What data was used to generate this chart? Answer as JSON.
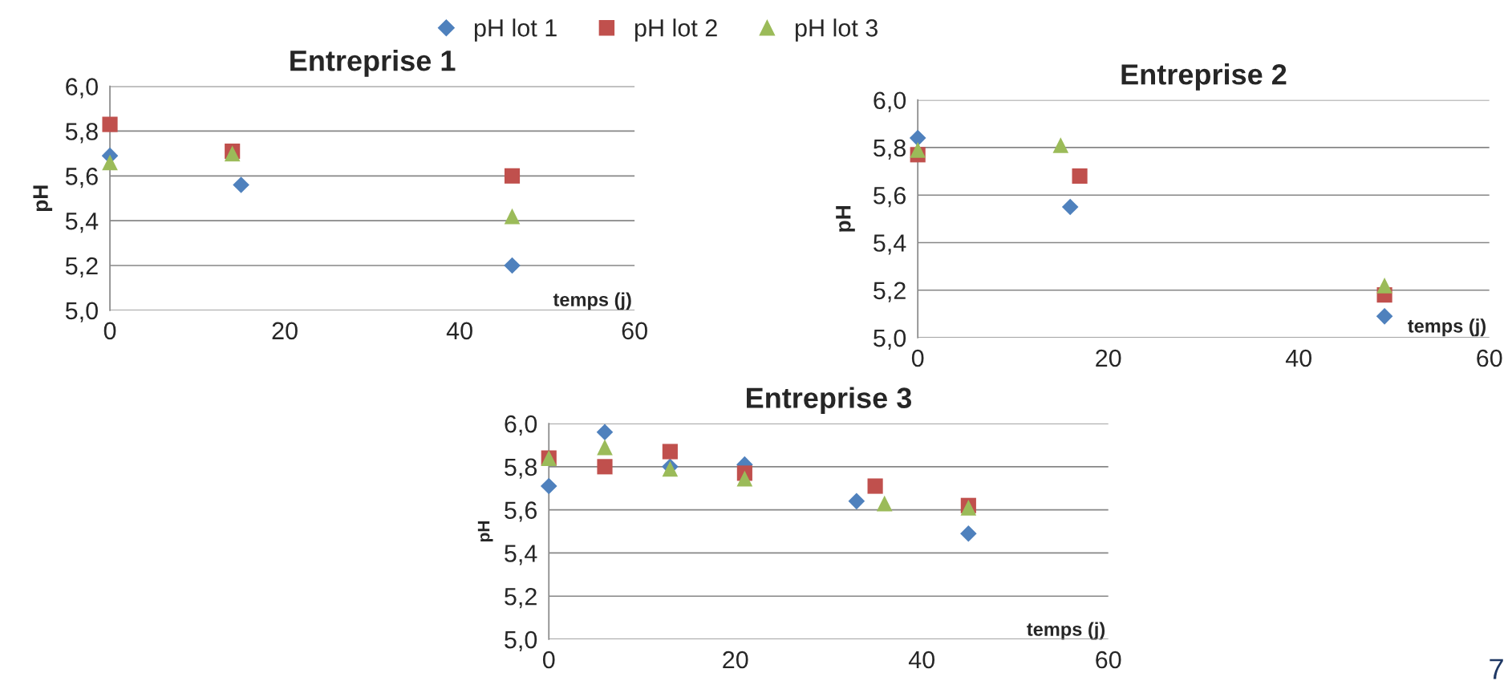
{
  "chart_data": [
    {
      "type": "scatter",
      "title": "Entreprise 1",
      "xlabel": "temps (j)",
      "ylabel": "pH",
      "xlim": [
        0,
        60
      ],
      "xticks": [
        0,
        20,
        40,
        60
      ],
      "ylim": [
        5.0,
        6.0
      ],
      "yticks": [
        {
          "value": 5.0,
          "label": "5,0"
        },
        {
          "value": 5.2,
          "label": "5,2"
        },
        {
          "value": 5.4,
          "label": "5,4"
        },
        {
          "value": 5.6,
          "label": "5,6"
        },
        {
          "value": 5.8,
          "label": "5,8"
        },
        {
          "value": 6.0,
          "label": "6,0"
        }
      ],
      "grid": "y",
      "legend": "top",
      "series": [
        {
          "name": "pH lot 1",
          "color": "#4f81bd",
          "marker": "diamond",
          "x": [
            0,
            15,
            46
          ],
          "values": [
            5.69,
            5.56,
            5.2
          ]
        },
        {
          "name": "pH lot 2",
          "color": "#c0504d",
          "marker": "square",
          "x": [
            0,
            14,
            46
          ],
          "values": [
            5.83,
            5.71,
            5.6
          ]
        },
        {
          "name": "pH lot 3",
          "color": "#9bbb59",
          "marker": "triangle",
          "x": [
            0,
            14,
            46
          ],
          "values": [
            5.66,
            5.7,
            5.42
          ]
        }
      ]
    },
    {
      "type": "scatter",
      "title": "Entreprise 2",
      "xlabel": "temps (j)",
      "ylabel": "pH",
      "xlim": [
        0,
        60
      ],
      "xticks": [
        0,
        20,
        40,
        60
      ],
      "ylim": [
        5.0,
        6.0
      ],
      "yticks": [
        {
          "value": 5.0,
          "label": "5,0"
        },
        {
          "value": 5.2,
          "label": "5,2"
        },
        {
          "value": 5.4,
          "label": "5,4"
        },
        {
          "value": 5.6,
          "label": "5,6"
        },
        {
          "value": 5.8,
          "label": "5,8"
        },
        {
          "value": 6.0,
          "label": "6,0"
        }
      ],
      "grid": "y",
      "series": [
        {
          "color": "#4f81bd",
          "marker": "diamond",
          "x": [
            0,
            16,
            49
          ],
          "values": [
            5.84,
            5.55,
            5.09
          ]
        },
        {
          "color": "#c0504d",
          "marker": "square",
          "x": [
            0,
            17,
            49
          ],
          "values": [
            5.77,
            5.68,
            5.18
          ]
        },
        {
          "color": "#9bbb59",
          "marker": "triangle",
          "x": [
            0,
            15,
            49
          ],
          "values": [
            5.79,
            5.81,
            5.22
          ]
        }
      ]
    },
    {
      "type": "scatter",
      "title": "Entreprise 3",
      "xlabel": "temps (j)",
      "ylabel": "pH",
      "xlim": [
        0,
        60
      ],
      "xticks": [
        0,
        20,
        40,
        60
      ],
      "ylim": [
        5.0,
        6.0
      ],
      "yticks": [
        {
          "value": 5.0,
          "label": "5,0"
        },
        {
          "value": 5.2,
          "label": "5,2"
        },
        {
          "value": 5.4,
          "label": "5,4"
        },
        {
          "value": 5.6,
          "label": "5,6"
        },
        {
          "value": 5.8,
          "label": "5,8"
        },
        {
          "value": 6.0,
          "label": "6,0"
        }
      ],
      "grid": "y",
      "annotations": [
        "7"
      ],
      "series": [
        {
          "color": "#4f81bd",
          "marker": "diamond",
          "x": [
            0,
            6,
            13,
            21,
            33,
            45
          ],
          "values": [
            5.71,
            5.96,
            5.8,
            5.81,
            5.64,
            5.49
          ]
        },
        {
          "color": "#c0504d",
          "marker": "square",
          "x": [
            0,
            6,
            13,
            21,
            35,
            45
          ],
          "values": [
            5.84,
            5.8,
            5.87,
            5.77,
            5.71,
            5.62
          ]
        },
        {
          "color": "#9bbb59",
          "marker": "triangle",
          "x": [
            0,
            6,
            13,
            21,
            36,
            45
          ],
          "values": [
            5.84,
            5.89,
            5.79,
            5.745,
            5.63,
            5.61
          ]
        }
      ]
    }
  ]
}
